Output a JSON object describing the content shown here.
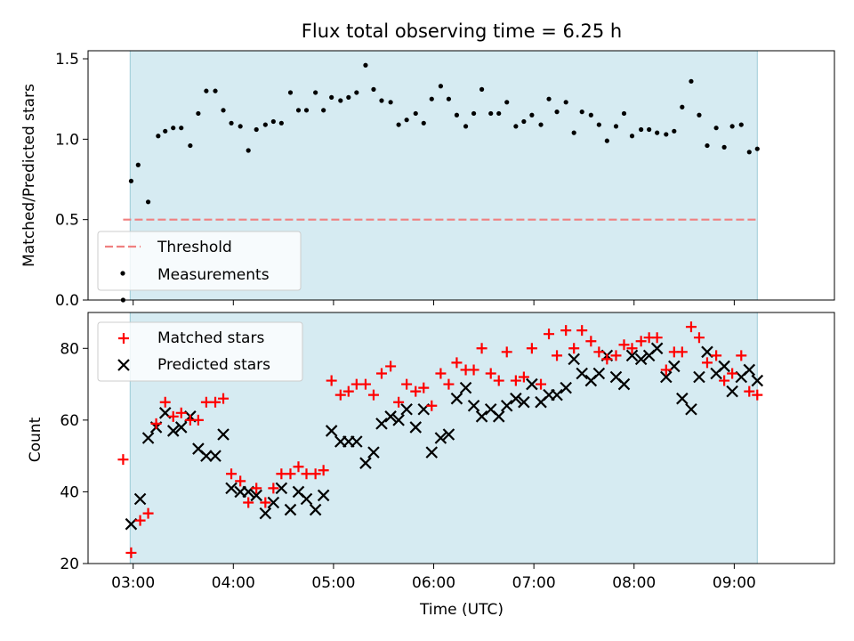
{
  "chart_data": [
    {
      "type": "scatter",
      "title": "Flux total observing time = 6.25 h",
      "xlabel": "",
      "ylabel": "Matched/Predicted stars",
      "ylim": [
        0.0,
        1.55
      ],
      "yticks": [
        "0.0",
        "0.5",
        "1.0",
        "1.5"
      ],
      "observing_span": [
        2.97,
        9.23
      ],
      "threshold": 0.5,
      "legend_position": "lower-left",
      "series": [
        {
          "name": "Threshold",
          "style": "dashed-line",
          "color": "#f08080"
        },
        {
          "name": "Measurements",
          "style": "dot",
          "color": "#000000",
          "x": [
            2.9,
            2.98,
            3.05,
            3.15,
            3.25,
            3.32,
            3.4,
            3.48,
            3.57,
            3.65,
            3.73,
            3.82,
            3.9,
            3.98,
            4.07,
            4.15,
            4.23,
            4.32,
            4.4,
            4.48,
            4.57,
            4.65,
            4.73,
            4.82,
            4.9,
            4.98,
            5.07,
            5.15,
            5.23,
            5.32,
            5.4,
            5.48,
            5.57,
            5.65,
            5.73,
            5.82,
            5.9,
            5.98,
            6.07,
            6.15,
            6.23,
            6.32,
            6.4,
            6.48,
            6.57,
            6.65,
            6.73,
            6.82,
            6.9,
            6.98,
            7.07,
            7.15,
            7.23,
            7.32,
            7.4,
            7.48,
            7.57,
            7.65,
            7.73,
            7.82,
            7.9,
            7.98,
            8.07,
            8.15,
            8.23,
            8.32,
            8.4,
            8.48,
            8.57,
            8.65,
            8.73,
            8.82,
            8.9,
            8.98,
            9.07,
            9.15,
            9.23
          ],
          "y": [
            0.0,
            0.74,
            0.84,
            0.61,
            1.02,
            1.05,
            1.07,
            1.07,
            0.96,
            1.16,
            1.3,
            1.3,
            1.18,
            1.1,
            1.08,
            0.93,
            1.06,
            1.09,
            1.11,
            1.1,
            1.29,
            1.18,
            1.18,
            1.29,
            1.18,
            1.26,
            1.24,
            1.26,
            1.29,
            1.46,
            1.31,
            1.24,
            1.23,
            1.09,
            1.12,
            1.16,
            1.1,
            1.25,
            1.33,
            1.25,
            1.15,
            1.08,
            1.16,
            1.31,
            1.16,
            1.16,
            1.23,
            1.08,
            1.11,
            1.15,
            1.09,
            1.25,
            1.17,
            1.23,
            1.04,
            1.17,
            1.15,
            1.09,
            0.99,
            1.08,
            1.16,
            1.02,
            1.06,
            1.06,
            1.04,
            1.03,
            1.05,
            1.2,
            1.36,
            1.15,
            0.96,
            1.07,
            0.95,
            1.08,
            1.09,
            0.92,
            0.94
          ]
        }
      ]
    },
    {
      "type": "scatter",
      "title": "",
      "xlabel": "Time (UTC)",
      "ylabel": "Count",
      "ylim": [
        20,
        90
      ],
      "yticks": [
        "20",
        "40",
        "60",
        "80"
      ],
      "xlim": [
        2.55,
        10.0
      ],
      "xticks": [
        {
          "value": 3,
          "label": "03:00"
        },
        {
          "value": 4,
          "label": "04:00"
        },
        {
          "value": 5,
          "label": "05:00"
        },
        {
          "value": 6,
          "label": "06:00"
        },
        {
          "value": 7,
          "label": "07:00"
        },
        {
          "value": 8,
          "label": "08:00"
        },
        {
          "value": 9,
          "label": "09:00"
        }
      ],
      "observing_span": [
        2.97,
        9.23
      ],
      "legend_position": "upper-left",
      "series": [
        {
          "name": "Matched stars",
          "marker": "plus",
          "color": "#ff0000",
          "x": [
            2.9,
            2.98,
            3.07,
            3.15,
            3.23,
            3.32,
            3.4,
            3.48,
            3.57,
            3.65,
            3.73,
            3.82,
            3.9,
            3.98,
            4.07,
            4.15,
            4.23,
            4.32,
            4.4,
            4.48,
            4.57,
            4.65,
            4.73,
            4.82,
            4.9,
            4.98,
            5.07,
            5.15,
            5.23,
            5.32,
            5.4,
            5.48,
            5.57,
            5.65,
            5.73,
            5.82,
            5.9,
            5.98,
            6.07,
            6.15,
            6.23,
            6.32,
            6.4,
            6.48,
            6.57,
            6.65,
            6.73,
            6.82,
            6.9,
            6.98,
            7.07,
            7.15,
            7.23,
            7.32,
            7.4,
            7.48,
            7.57,
            7.65,
            7.73,
            7.82,
            7.9,
            7.98,
            8.07,
            8.15,
            8.23,
            8.32,
            8.4,
            8.48,
            8.57,
            8.65,
            8.73,
            8.82,
            8.9,
            8.98,
            9.07,
            9.15,
            9.23
          ],
          "y": [
            49,
            23,
            32,
            34,
            59,
            65,
            61,
            62,
            60,
            60,
            65,
            65,
            66,
            45,
            43,
            37,
            41,
            37,
            41,
            45,
            45,
            47,
            45,
            45,
            46,
            71,
            67,
            68,
            70,
            70,
            67,
            73,
            75,
            65,
            70,
            68,
            69,
            64,
            73,
            70,
            76,
            74,
            74,
            80,
            73,
            71,
            79,
            71,
            72,
            80,
            70,
            84,
            78,
            85,
            80,
            85,
            82,
            79,
            77,
            78,
            81,
            80,
            82,
            83,
            83,
            74,
            79,
            79,
            86,
            83,
            76,
            78,
            71,
            73,
            78,
            68,
            67
          ]
        },
        {
          "name": "Predicted stars",
          "marker": "x",
          "color": "#000000",
          "x": [
            2.98,
            3.07,
            3.15,
            3.23,
            3.32,
            3.4,
            3.48,
            3.57,
            3.65,
            3.73,
            3.82,
            3.9,
            3.98,
            4.07,
            4.15,
            4.23,
            4.32,
            4.4,
            4.48,
            4.57,
            4.65,
            4.73,
            4.82,
            4.9,
            4.98,
            5.07,
            5.15,
            5.23,
            5.32,
            5.4,
            5.48,
            5.57,
            5.65,
            5.73,
            5.82,
            5.9,
            5.98,
            6.07,
            6.15,
            6.23,
            6.32,
            6.4,
            6.48,
            6.57,
            6.65,
            6.73,
            6.82,
            6.9,
            6.98,
            7.07,
            7.15,
            7.23,
            7.32,
            7.4,
            7.48,
            7.57,
            7.65,
            7.73,
            7.82,
            7.9,
            7.98,
            8.07,
            8.15,
            8.23,
            8.32,
            8.4,
            8.48,
            8.57,
            8.65,
            8.73,
            8.82,
            8.9,
            8.98,
            9.07,
            9.15,
            9.23
          ],
          "y": [
            31,
            38,
            55,
            58,
            62,
            57,
            58,
            61,
            52,
            50,
            50,
            56,
            41,
            40,
            40,
            39,
            34,
            37,
            41,
            35,
            40,
            38,
            35,
            39,
            57,
            54,
            54,
            54,
            48,
            51,
            59,
            61,
            60,
            63,
            58,
            63,
            51,
            55,
            56,
            66,
            69,
            64,
            61,
            63,
            61,
            64,
            66,
            65,
            70,
            65,
            67,
            67,
            69,
            77,
            73,
            71,
            73,
            78,
            72,
            70,
            78,
            77,
            78,
            80,
            72,
            75,
            66,
            63,
            72,
            79,
            73,
            75,
            68,
            72,
            74,
            71
          ]
        }
      ]
    }
  ]
}
